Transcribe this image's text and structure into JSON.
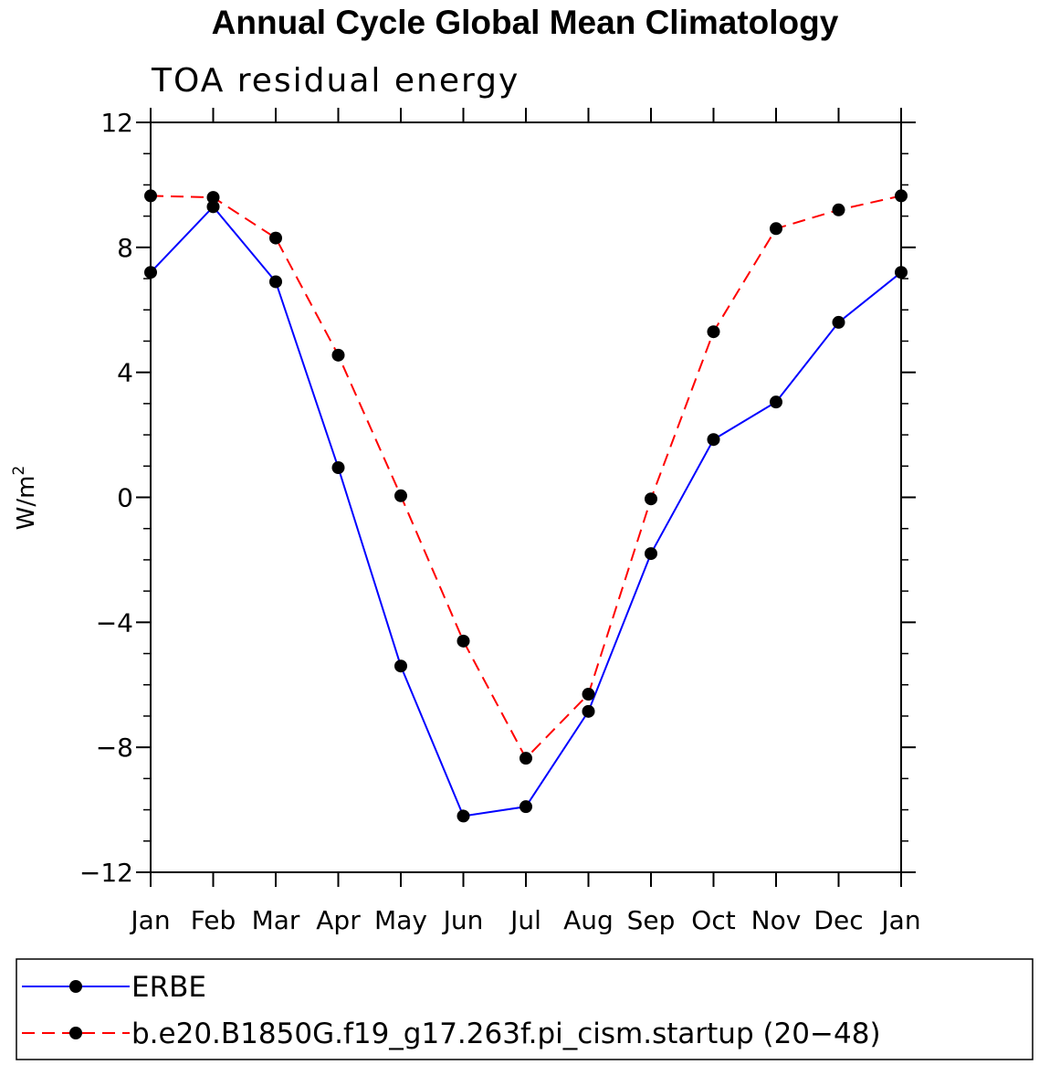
{
  "chart_data": {
    "type": "line",
    "title": "Annual Cycle Global Mean Climatology",
    "subtitle": "TOA residual energy",
    "ylabel_base": "W/m",
    "ylabel_sup": "2",
    "xlabel": "",
    "categories": [
      "Jan",
      "Feb",
      "Mar",
      "Apr",
      "May",
      "Jun",
      "Jul",
      "Aug",
      "Sep",
      "Oct",
      "Nov",
      "Dec",
      "Jan"
    ],
    "ylim": [
      -12,
      12
    ],
    "yticks": [
      -12,
      -8,
      -4,
      0,
      4,
      8,
      12
    ],
    "ytick_labels": [
      "−12",
      "−8",
      "−4",
      "0",
      "4",
      "8",
      "12"
    ],
    "series": [
      {
        "name": "ERBE",
        "color": "#0000ff",
        "dash": "solid",
        "values": [
          7.2,
          9.3,
          6.9,
          0.95,
          -5.4,
          -10.2,
          -9.9,
          -6.85,
          -1.8,
          1.85,
          3.05,
          5.6,
          7.2
        ]
      },
      {
        "name": "b.e20.B1850G.f19_g17.263f.pi_cism.startup (20−48)",
        "color": "#ff0000",
        "dash": "dashed",
        "values": [
          9.65,
          9.6,
          8.3,
          4.55,
          0.05,
          -4.6,
          -8.35,
          -6.3,
          -0.05,
          5.3,
          8.6,
          9.2,
          9.65
        ]
      }
    ],
    "legend_position": "bottom"
  }
}
